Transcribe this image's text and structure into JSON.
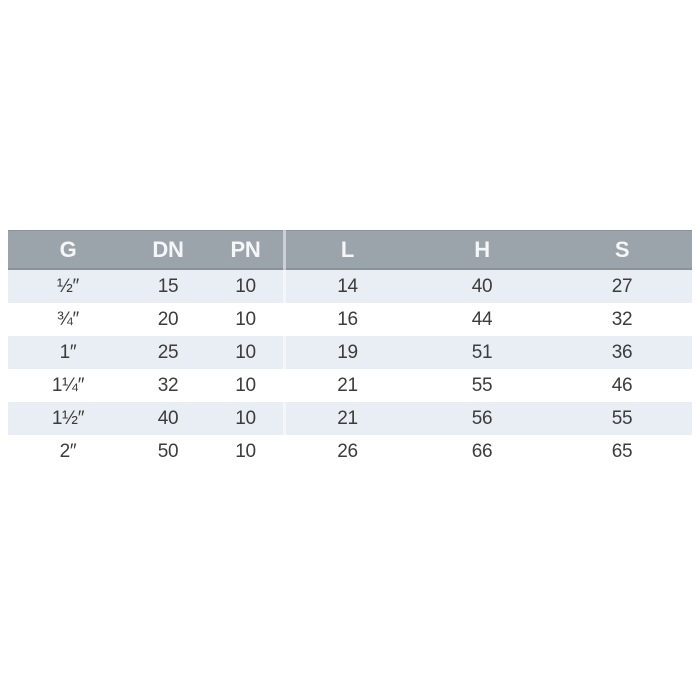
{
  "chart_data": {
    "type": "table",
    "columns": [
      "G",
      "DN",
      "PN",
      "L",
      "H",
      "S"
    ],
    "rows": [
      [
        "½″",
        "15",
        "10",
        "14",
        "40",
        "27"
      ],
      [
        "¾″",
        "20",
        "10",
        "16",
        "44",
        "32"
      ],
      [
        "1″",
        "25",
        "10",
        "19",
        "51",
        "36"
      ],
      [
        "1¼″",
        "32",
        "10",
        "21",
        "55",
        "46"
      ],
      [
        "1½″",
        "40",
        "10",
        "21",
        "56",
        "55"
      ],
      [
        "2″",
        "50",
        "10",
        "26",
        "66",
        "65"
      ]
    ],
    "layout_hints": {
      "alternating_rows": "first data row tinted, then alternating",
      "divider_after_column": "PN",
      "grid": "off",
      "legend": "none"
    }
  },
  "colors": {
    "header_bg": "#9ba3ab",
    "header_text": "#f4f6f7",
    "header_border": "#8a929a",
    "alt_row_bg": "#e8eef3",
    "row_bg": "#ffffff",
    "body_text": "#3c3c3c",
    "divider": "rgba(255,255,255,0.5)"
  }
}
